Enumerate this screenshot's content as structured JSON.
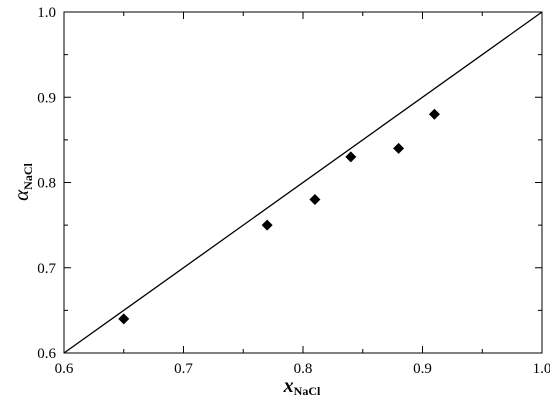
{
  "chart_data": {
    "type": "scatter",
    "title": "",
    "xlabel": {
      "main": "x",
      "sub": "NaCl"
    },
    "ylabel": {
      "main": "α",
      "sub": "NaCl"
    },
    "xlim": [
      0.6,
      1.0
    ],
    "ylim": [
      0.6,
      1.0
    ],
    "xticks": [
      "0.6",
      "0.7",
      "0.8",
      "0.9",
      "1.0"
    ],
    "yticks": [
      "0.6",
      "0.7",
      "0.8",
      "0.9",
      "1.0"
    ],
    "grid": false,
    "marker": "diamond",
    "marker_color": "#000000",
    "series": [
      {
        "x": [
          0.65,
          0.77,
          0.81,
          0.84,
          0.88,
          0.91
        ],
        "y": [
          0.64,
          0.75,
          0.78,
          0.83,
          0.84,
          0.88
        ]
      }
    ],
    "reference_line": {
      "x": [
        0.6,
        1.0
      ],
      "y": [
        0.6,
        1.0
      ]
    }
  }
}
